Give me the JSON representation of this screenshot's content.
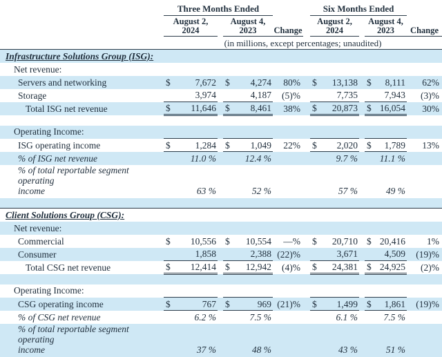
{
  "colors": {
    "row_highlight": "#cfe8f5",
    "text": "#1f2e3c",
    "rule": "#2b3b49",
    "background": "#ffffff"
  },
  "header": {
    "three_months": "Three Months Ended",
    "six_months": "Six Months Ended",
    "col_2024": "August 2,\n2024",
    "col_2023": "August 4,\n2023",
    "change": "Change",
    "caption": "(in millions, except percentages; unaudited)"
  },
  "rows": [
    {
      "type": "section",
      "indent": 0,
      "label": "Infrastructure Solutions Group (ISG):",
      "topRule": true
    },
    {
      "type": "label",
      "indent": 1,
      "label": "Net revenue:"
    },
    {
      "type": "money",
      "indent": 2,
      "label": "Servers and networking",
      "d1": "$",
      "v1": "7,672",
      "d2": "$",
      "v2": "4,274",
      "c1": "80%",
      "d3": "$",
      "v3": "13,138",
      "d4": "$",
      "v4": "8,111",
      "c2": "62%"
    },
    {
      "type": "money",
      "indent": 2,
      "label": "Storage",
      "d1": "",
      "v1": "3,974",
      "d2": "",
      "v2": "4,187",
      "c1": "(5)%",
      "d3": "",
      "v3": "7,735",
      "d4": "",
      "v4": "7,943",
      "c2": "(3)%",
      "border": "bottom"
    },
    {
      "type": "money",
      "indent": 3,
      "label": "Total ISG net revenue",
      "d1": "$",
      "v1": "11,646",
      "d2": "$",
      "v2": "8,461",
      "c1": "38%",
      "d3": "$",
      "v3": "20,873",
      "d4": "$",
      "v4": "16,054",
      "c2": "30%",
      "border": "double"
    },
    {
      "type": "blank",
      "indent": 0,
      "label": ""
    },
    {
      "type": "label",
      "indent": 1,
      "label": "Operating Income:"
    },
    {
      "type": "money",
      "indent": 2,
      "label": "ISG operating income",
      "d1": "$",
      "v1": "1,284",
      "d2": "$",
      "v2": "1,049",
      "c1": "22%",
      "d3": "$",
      "v3": "2,020",
      "d4": "$",
      "v4": "1,789",
      "c2": "13%",
      "border": "topbottom"
    },
    {
      "type": "pct",
      "indent": 2,
      "label": "% of ISG net revenue",
      "v1": "11.0 %",
      "v2": "12.4 %",
      "v3": "9.7 %",
      "v4": "11.1 %"
    },
    {
      "type": "pct",
      "indent": 2,
      "label": "% of total reportable segment operating\nincome",
      "v1": "63 %",
      "v2": "52 %",
      "v3": "57 %",
      "v4": "49 %",
      "tall": true
    },
    {
      "type": "blank",
      "indent": 0,
      "label": ""
    },
    {
      "type": "section",
      "indent": 0,
      "label": "Client Solutions Group (CSG):",
      "topRule": true
    },
    {
      "type": "label",
      "indent": 1,
      "label": "Net revenue:"
    },
    {
      "type": "money",
      "indent": 2,
      "label": "Commercial",
      "d1": "$",
      "v1": "10,556",
      "d2": "$",
      "v2": "10,554",
      "c1": "—%",
      "d3": "$",
      "v3": "20,710",
      "d4": "$",
      "v4": "20,416",
      "c2": "1%"
    },
    {
      "type": "money",
      "indent": 2,
      "label": "Consumer",
      "d1": "",
      "v1": "1,858",
      "d2": "",
      "v2": "2,388",
      "c1": "(22)%",
      "d3": "",
      "v3": "3,671",
      "d4": "",
      "v4": "4,509",
      "c2": "(19)%",
      "border": "bottom"
    },
    {
      "type": "money",
      "indent": 3,
      "label": "Total CSG net revenue",
      "d1": "$",
      "v1": "12,414",
      "d2": "$",
      "v2": "12,942",
      "c1": "(4)%",
      "d3": "$",
      "v3": "24,381",
      "d4": "$",
      "v4": "24,925",
      "c2": "(2)%",
      "border": "double"
    },
    {
      "type": "blank",
      "indent": 0,
      "label": ""
    },
    {
      "type": "label",
      "indent": 1,
      "label": "Operating Income:"
    },
    {
      "type": "money",
      "indent": 2,
      "label": "CSG operating income",
      "d1": "$",
      "v1": "767",
      "d2": "$",
      "v2": "969",
      "c1": "(21)%",
      "d3": "$",
      "v3": "1,499",
      "d4": "$",
      "v4": "1,861",
      "c2": "(19)%",
      "border": "topbottom"
    },
    {
      "type": "pct",
      "indent": 2,
      "label": "% of CSG net revenue",
      "v1": "6.2 %",
      "v2": "7.5 %",
      "v3": "6.1 %",
      "v4": "7.5 %"
    },
    {
      "type": "pct",
      "indent": 2,
      "label": "% of total reportable segment operating\nincome",
      "v1": "37 %",
      "v2": "48 %",
      "v3": "43 %",
      "v4": "51 %",
      "tall": true
    }
  ]
}
